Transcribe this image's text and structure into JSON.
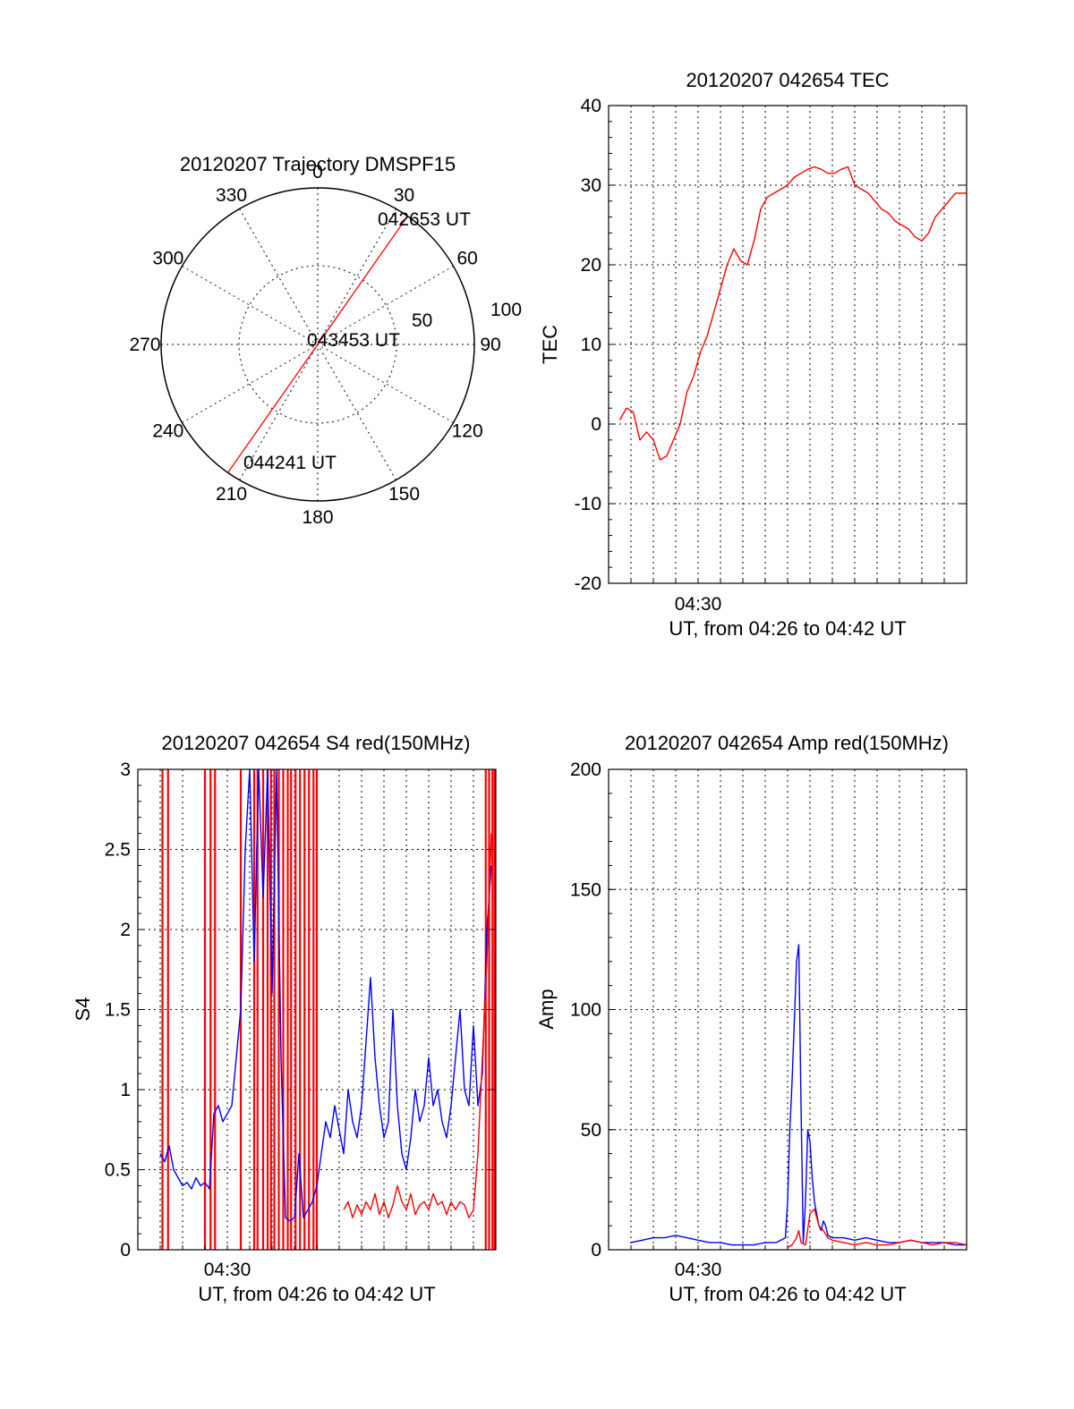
{
  "chart_data": [
    {
      "type": "polar",
      "title": "20120207 Trajectory DMSPF15",
      "azimuth_labels": [
        "0",
        "30",
        "60",
        "90",
        "120",
        "150",
        "180",
        "210",
        "240",
        "270",
        "300",
        "330"
      ],
      "radial_labels": [
        "50",
        "100"
      ],
      "trajectory": [
        {
          "az": 35,
          "r": 100,
          "label": "042653 UT"
        },
        {
          "az": 35,
          "r": 0,
          "label": "043453 UT"
        },
        {
          "az": 215,
          "r": 100,
          "label": "044241 UT"
        }
      ],
      "color": "#ff0000"
    },
    {
      "type": "line",
      "title": "20120207 042654 TEC",
      "ylabel": "TEC",
      "xlabel": "UT, from 04:26 to 04:42 UT",
      "xtick_label": "04:30",
      "xlim": [
        0,
        16
      ],
      "ylim": [
        -20,
        40
      ],
      "yticks": [
        "-20",
        "-10",
        "0",
        "10",
        "20",
        "30",
        "40"
      ],
      "grid": true,
      "series": [
        {
          "color": "#ff0000",
          "x": [
            0.5,
            0.8,
            1.1,
            1.4,
            1.7,
            2.0,
            2.3,
            2.6,
            2.9,
            3.2,
            3.5,
            3.8,
            4.1,
            4.4,
            4.7,
            5.0,
            5.3,
            5.6,
            5.9,
            6.2,
            6.5,
            6.8,
            7.1,
            7.4,
            7.7,
            8.0,
            8.3,
            8.6,
            8.9,
            9.2,
            9.5,
            9.8,
            10.1,
            10.4,
            10.7,
            11.0,
            11.3,
            11.6,
            11.9,
            12.2,
            12.5,
            12.8,
            13.1,
            13.4,
            13.7,
            14.0,
            14.3,
            14.6,
            14.9,
            15.2,
            15.5,
            16.0
          ],
          "y": [
            0.5,
            2,
            1.5,
            -2,
            -1,
            -2,
            -4.5,
            -4,
            -2,
            0,
            4,
            6,
            9,
            11,
            14,
            17,
            20,
            22,
            20.5,
            20,
            23,
            27,
            28.5,
            29,
            29.5,
            30,
            31,
            31.5,
            32,
            32.3,
            32,
            31.5,
            31.5,
            32,
            32.3,
            30,
            29.5,
            29,
            28,
            27,
            26.5,
            25.5,
            25,
            24.5,
            23.5,
            23,
            24,
            26,
            27,
            28,
            29,
            29
          ]
        }
      ]
    },
    {
      "type": "line",
      "title": "20120207 042654 S4 red(150MHz)",
      "ylabel": "S4",
      "xlabel": "UT, from 04:26 to 04:42 UT",
      "xtick_label": "04:30",
      "xlim": [
        0,
        16
      ],
      "ylim": [
        0,
        3
      ],
      "yticks": [
        "0",
        "0.5",
        "1",
        "1.5",
        "2",
        "2.5",
        "3"
      ],
      "grid": true,
      "series": [
        {
          "color": "#0000ff",
          "x": [
            1.0,
            1.2,
            1.4,
            1.6,
            1.8,
            2.0,
            2.2,
            2.4,
            2.6,
            2.8,
            3.0,
            3.2,
            3.4,
            3.6,
            3.8,
            4.0,
            4.2,
            4.4,
            4.6,
            4.8,
            5.0,
            5.2,
            5.4,
            5.6,
            5.8,
            6.0,
            6.2,
            6.4,
            6.6,
            6.8,
            7.0,
            7.2,
            7.4,
            7.6,
            7.8,
            8.0,
            8.2,
            8.4,
            8.6,
            8.8,
            9.0,
            9.2,
            9.4,
            9.6,
            9.8,
            10.0,
            10.2,
            10.4,
            10.6,
            10.8,
            11.0,
            11.2,
            11.4,
            11.6,
            11.8,
            12.0,
            12.2,
            12.4,
            12.6,
            12.8,
            13.0,
            13.2,
            13.4,
            13.6,
            13.8,
            14.0,
            14.2,
            14.4,
            14.6,
            14.8,
            15.0,
            15.2,
            15.4,
            15.6,
            15.8
          ],
          "y": [
            0.6,
            0.55,
            0.65,
            0.5,
            0.45,
            0.4,
            0.42,
            0.38,
            0.45,
            0.4,
            0.42,
            0.38,
            0.85,
            0.9,
            0.8,
            0.85,
            0.9,
            1.2,
            1.5,
            2.5,
            3.0,
            1.8,
            3.0,
            2.2,
            3.0,
            1.6,
            3.0,
            1.2,
            0.2,
            0.18,
            0.2,
            0.6,
            0.2,
            0.25,
            0.3,
            0.4,
            0.6,
            0.8,
            0.7,
            0.9,
            0.75,
            0.6,
            1.0,
            0.8,
            0.7,
            0.9,
            1.3,
            1.7,
            1.2,
            0.9,
            0.7,
            0.8,
            1.5,
            0.9,
            0.6,
            0.5,
            0.7,
            1.0,
            0.8,
            0.9,
            1.2,
            0.9,
            1.0,
            0.8,
            0.7,
            0.9,
            1.2,
            1.5,
            1.0,
            0.9,
            1.4,
            0.9,
            1.1,
            2.0,
            2.4
          ]
        },
        {
          "color": "#ff0000",
          "x": [
            9.2,
            9.4,
            9.6,
            9.8,
            10.0,
            10.2,
            10.4,
            10.6,
            10.8,
            11.0,
            11.2,
            11.4,
            11.6,
            11.8,
            12.0,
            12.2,
            12.4,
            12.6,
            12.8,
            13.0,
            13.2,
            13.4,
            13.6,
            13.8,
            14.0,
            14.2,
            14.4,
            14.6,
            14.8,
            15.0,
            15.2,
            15.4,
            15.6,
            15.8
          ],
          "y": [
            0.25,
            0.3,
            0.2,
            0.28,
            0.22,
            0.3,
            0.25,
            0.35,
            0.22,
            0.3,
            0.2,
            0.28,
            0.4,
            0.3,
            0.25,
            0.35,
            0.22,
            0.28,
            0.3,
            0.25,
            0.35,
            0.28,
            0.3,
            0.22,
            0.3,
            0.25,
            0.3,
            0.28,
            0.2,
            0.25,
            0.6,
            1.2,
            1.8,
            2.6
          ]
        }
      ],
      "spikes": {
        "color": "#ff0000",
        "x": [
          1.1,
          1.35,
          3.0,
          3.25,
          3.45,
          4.6,
          5.2,
          5.35,
          5.6,
          5.8,
          5.95,
          6.1,
          6.3,
          6.5,
          6.7,
          6.85,
          7.05,
          7.25,
          7.45,
          7.65,
          7.85,
          8.0,
          15.55,
          15.7,
          15.85,
          15.95
        ],
        "y_top": 3
      }
    },
    {
      "type": "line",
      "title": "20120207 042654 Amp red(150MHz)",
      "ylabel": "Amp",
      "xlabel": "UT, from 04:26 to 04:42 UT",
      "xtick_label": "04:30",
      "xlim": [
        0,
        16
      ],
      "ylim": [
        0,
        200
      ],
      "yticks": [
        "0",
        "50",
        "100",
        "150",
        "200"
      ],
      "grid": true,
      "series": [
        {
          "color": "#0000ff",
          "x": [
            1.0,
            1.5,
            2.0,
            2.5,
            3.0,
            3.5,
            4.0,
            4.5,
            5.0,
            5.5,
            6.0,
            6.5,
            7.0,
            7.5,
            7.9,
            8.0,
            8.1,
            8.2,
            8.3,
            8.4,
            8.5,
            8.6,
            8.7,
            8.8,
            8.9,
            9.0,
            9.1,
            9.2,
            9.3,
            9.4,
            9.5,
            9.6,
            9.7,
            9.8,
            10.0,
            10.5,
            11.0,
            11.5,
            12.0,
            12.5,
            13.0,
            13.5,
            14.0,
            14.5,
            15.0,
            15.5,
            16.0
          ],
          "y": [
            3,
            4,
            5,
            5,
            6,
            5,
            4,
            3,
            3,
            2,
            2,
            2,
            3,
            3,
            5,
            20,
            50,
            70,
            95,
            120,
            127,
            60,
            3,
            20,
            50,
            45,
            30,
            20,
            15,
            10,
            8,
            12,
            10,
            6,
            5,
            5,
            4,
            5,
            4,
            3,
            3,
            4,
            3,
            3,
            3,
            2,
            2
          ]
        },
        {
          "color": "#ff0000",
          "x": [
            8.0,
            8.2,
            8.4,
            8.5,
            8.6,
            8.8,
            9.0,
            9.2,
            9.4,
            9.6,
            9.8,
            10.0,
            10.5,
            11.0,
            11.5,
            12.0,
            12.5,
            13.0,
            13.5,
            14.0,
            14.5,
            15.0,
            15.5,
            16.0
          ],
          "y": [
            1,
            2,
            5,
            8,
            3,
            2,
            15,
            17,
            10,
            8,
            5,
            4,
            3,
            2,
            3,
            2,
            2,
            3,
            4,
            3,
            2,
            3,
            3,
            2
          ]
        }
      ]
    }
  ]
}
